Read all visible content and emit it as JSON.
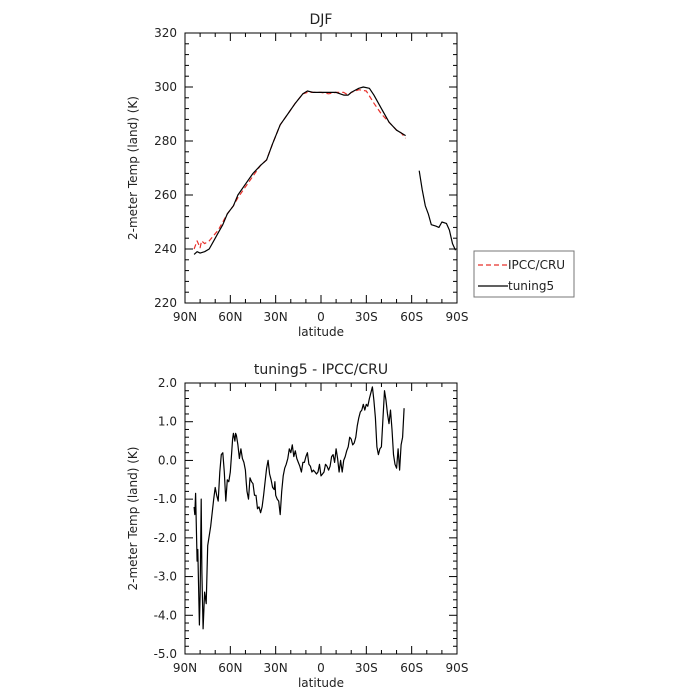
{
  "chart_data": [
    {
      "type": "line",
      "title": "DJF",
      "xlabel": "latitude",
      "ylabel": "2-meter Temp (land) (K)",
      "xlim": [
        90,
        -90
      ],
      "ylim": [
        220,
        320
      ],
      "yticks": [
        220,
        240,
        260,
        280,
        300,
        320
      ],
      "ytick_labels": [
        "220",
        "240",
        "260",
        "280",
        "300",
        "320"
      ],
      "xticks": [
        90,
        60,
        30,
        0,
        -30,
        -60,
        -90
      ],
      "xtick_labels": [
        "90N",
        "60N",
        "30N",
        "0",
        "30S",
        "60S",
        "90S"
      ],
      "legend_position": "right",
      "series": [
        {
          "name": "IPCC/CRU",
          "style": "dashed",
          "color": "#e8302a",
          "segments": [
            [
              [
                84,
                240
              ],
              [
                82,
                243
              ],
              [
                80,
                240.5
              ],
              [
                79,
                243
              ],
              [
                77,
                242
              ],
              [
                74,
                243
              ],
              [
                71,
                245
              ],
              [
                68,
                247
              ],
              [
                65,
                250
              ],
              [
                62,
                253
              ],
              [
                58,
                256
              ],
              [
                55,
                259
              ],
              [
                50,
                263
              ],
              [
                45,
                267
              ],
              [
                40,
                271
              ],
              [
                36,
                273
              ],
              [
                32,
                279
              ],
              [
                27,
                286
              ],
              [
                22,
                290
              ],
              [
                17,
                294
              ],
              [
                12,
                297.5
              ],
              [
                9,
                298
              ],
              [
                5,
                298
              ],
              [
                0,
                298
              ],
              [
                -5,
                297.5
              ],
              [
                -10,
                298
              ],
              [
                -15,
                298
              ],
              [
                -18,
                297
              ],
              [
                -20,
                298
              ],
              [
                -25,
                299
              ],
              [
                -30,
                298.5
              ],
              [
                -35,
                294
              ],
              [
                -40,
                290
              ],
              [
                -45,
                287
              ],
              [
                -50,
                284
              ],
              [
                -53,
                283
              ],
              [
                -56,
                281
              ]
            ]
          ]
        },
        {
          "name": "tuning5",
          "style": "solid",
          "color": "#000000",
          "segments": [
            [
              [
                84,
                238
              ],
              [
                82,
                239
              ],
              [
                80,
                238.5
              ],
              [
                77,
                239
              ],
              [
                74,
                240
              ],
              [
                71,
                243
              ],
              [
                68,
                246
              ],
              [
                65,
                249
              ],
              [
                62,
                253
              ],
              [
                58,
                256
              ],
              [
                55,
                260
              ],
              [
                50,
                264
              ],
              [
                45,
                268
              ],
              [
                40,
                271
              ],
              [
                36,
                273
              ],
              [
                32,
                279
              ],
              [
                27,
                286
              ],
              [
                22,
                290
              ],
              [
                17,
                294
              ],
              [
                12,
                297.5
              ],
              [
                9,
                298.5
              ],
              [
                5,
                298
              ],
              [
                0,
                298
              ],
              [
                -5,
                298
              ],
              [
                -10,
                298
              ],
              [
                -15,
                297
              ],
              [
                -18,
                297
              ],
              [
                -20,
                298
              ],
              [
                -25,
                299.5
              ],
              [
                -28,
                300
              ],
              [
                -32,
                299.5
              ],
              [
                -35,
                297
              ],
              [
                -40,
                292
              ],
              [
                -45,
                287
              ],
              [
                -50,
                284
              ],
              [
                -53,
                283
              ],
              [
                -56,
                282
              ]
            ],
            [
              [
                -65,
                269
              ],
              [
                -67,
                262
              ],
              [
                -69,
                256
              ],
              [
                -71,
                253
              ],
              [
                -73,
                249
              ],
              [
                -76,
                248.5
              ],
              [
                -78,
                248
              ],
              [
                -80,
                250
              ],
              [
                -83,
                249.5
              ],
              [
                -85,
                247
              ],
              [
                -87,
                242
              ],
              [
                -89,
                239.5
              ]
            ]
          ]
        }
      ]
    },
    {
      "type": "line",
      "title": "tuning5 - IPCC/CRU",
      "xlabel": "latitude",
      "ylabel": "2-meter Temp (land) (K)",
      "xlim": [
        90,
        -90
      ],
      "ylim": [
        -5,
        2
      ],
      "yticks": [
        -5,
        -4,
        -3,
        -2,
        -1,
        0,
        1,
        2
      ],
      "ytick_labels": [
        "-5.0",
        "-4.0",
        "-3.0",
        "-2.0",
        "-1.0",
        "0.0",
        "1.0",
        "2.0"
      ],
      "xticks": [
        90,
        60,
        30,
        0,
        -30,
        -60,
        -90
      ],
      "xtick_labels": [
        "90N",
        "60N",
        "30N",
        "0",
        "30S",
        "60S",
        "90S"
      ],
      "series": [
        {
          "name": "tuning5",
          "style": "solid",
          "color": "#000000",
          "segments": [
            [
              [
                84,
                -1.2
              ],
              [
                83.5,
                -1.4
              ],
              [
                83,
                -0.85
              ],
              [
                82,
                -2.6
              ],
              [
                81.5,
                -2.3
              ],
              [
                80.5,
                -4.25
              ],
              [
                80,
                -3.5
              ],
              [
                79.3,
                -1.0
              ],
              [
                78.8,
                -2.9
              ],
              [
                78,
                -4.35
              ],
              [
                77,
                -3.4
              ],
              [
                76,
                -3.7
              ],
              [
                75,
                -2.2
              ],
              [
                73,
                -1.7
              ],
              [
                71,
                -1.0
              ],
              [
                70,
                -0.7
              ],
              [
                69,
                -0.9
              ],
              [
                68,
                -1.05
              ],
              [
                67,
                -0.3
              ],
              [
                66,
                0.15
              ],
              [
                65,
                0.2
              ],
              [
                64,
                -0.3
              ],
              [
                63,
                -1.05
              ],
              [
                62,
                -0.5
              ],
              [
                61,
                -0.55
              ],
              [
                60,
                -0.3
              ],
              [
                59,
                0.25
              ],
              [
                58.5,
                0.55
              ],
              [
                58,
                0.7
              ],
              [
                57,
                0.5
              ],
              [
                56.5,
                0.7
              ],
              [
                56,
                0.65
              ],
              [
                55,
                0.4
              ],
              [
                54,
                0.05
              ],
              [
                53,
                0.3
              ],
              [
                52,
                0.05
              ],
              [
                51,
                -0.05
              ],
              [
                50,
                -0.25
              ],
              [
                49.5,
                -0.55
              ],
              [
                49,
                -0.8
              ],
              [
                48,
                -1.0
              ],
              [
                47,
                -0.45
              ],
              [
                46,
                -0.55
              ],
              [
                45,
                -0.6
              ],
              [
                44,
                -0.9
              ],
              [
                43,
                -0.9
              ],
              [
                42,
                -1.25
              ],
              [
                41,
                -1.2
              ],
              [
                40,
                -1.35
              ],
              [
                39,
                -1.2
              ],
              [
                38,
                -0.9
              ],
              [
                37,
                -0.55
              ],
              [
                36,
                -0.2
              ],
              [
                35,
                0.0
              ],
              [
                34,
                -0.35
              ],
              [
                33,
                -0.5
              ],
              [
                32,
                -0.7
              ],
              [
                31,
                -0.75
              ],
              [
                30.5,
                -0.55
              ],
              [
                30,
                -0.9
              ],
              [
                29,
                -1.0
              ],
              [
                28,
                -1.05
              ],
              [
                27,
                -1.4
              ],
              [
                26,
                -0.8
              ],
              [
                25,
                -0.4
              ],
              [
                24,
                -0.2
              ],
              [
                23,
                -0.1
              ],
              [
                22,
                0.05
              ],
              [
                21,
                0.3
              ],
              [
                20,
                0.2
              ],
              [
                19,
                0.4
              ],
              [
                18,
                0.1
              ],
              [
                17,
                0.25
              ],
              [
                16,
                0.05
              ],
              [
                15,
                -0.05
              ],
              [
                14,
                -0.15
              ],
              [
                13,
                -0.3
              ],
              [
                12,
                -0.05
              ],
              [
                11,
                -0.05
              ],
              [
                10,
                0.1
              ],
              [
                9,
                0.2
              ],
              [
                8,
                -0.1
              ],
              [
                7,
                -0.15
              ],
              [
                6,
                -0.3
              ],
              [
                5,
                -0.25
              ],
              [
                4,
                -0.3
              ],
              [
                3,
                -0.35
              ],
              [
                2,
                -0.3
              ],
              [
                1,
                -0.1
              ],
              [
                0,
                -0.4
              ],
              [
                -1,
                -0.35
              ],
              [
                -2,
                -0.3
              ],
              [
                -3,
                -0.1
              ],
              [
                -4,
                -0.15
              ],
              [
                -5,
                -0.25
              ],
              [
                -6,
                -0.15
              ],
              [
                -7,
                0.1
              ],
              [
                -8,
                0.15
              ],
              [
                -9,
                -0.05
              ],
              [
                -10,
                0.3
              ],
              [
                -11,
                0.05
              ],
              [
                -12,
                -0.3
              ],
              [
                -13,
                0.0
              ],
              [
                -14,
                -0.3
              ],
              [
                -15,
                0.0
              ],
              [
                -16,
                0.1
              ],
              [
                -17,
                0.25
              ],
              [
                -18,
                0.35
              ],
              [
                -19,
                0.6
              ],
              [
                -20,
                0.55
              ],
              [
                -21,
                0.4
              ],
              [
                -22,
                0.45
              ],
              [
                -23,
                0.6
              ],
              [
                -24,
                0.9
              ],
              [
                -25,
                1.1
              ],
              [
                -26,
                1.25
              ],
              [
                -27,
                1.3
              ],
              [
                -28,
                1.45
              ],
              [
                -29,
                1.3
              ],
              [
                -30,
                1.45
              ],
              [
                -31,
                1.4
              ],
              [
                -32,
                1.6
              ],
              [
                -33,
                1.75
              ],
              [
                -34,
                1.9
              ],
              [
                -35,
                1.55
              ],
              [
                -36,
                1.1
              ],
              [
                -37,
                0.35
              ],
              [
                -38,
                0.15
              ],
              [
                -39,
                0.3
              ],
              [
                -40,
                0.35
              ],
              [
                -41,
                1.1
              ],
              [
                -42,
                1.8
              ],
              [
                -43,
                1.55
              ],
              [
                -44,
                1.2
              ],
              [
                -45,
                0.95
              ],
              [
                -46,
                1.3
              ],
              [
                -47,
                0.8
              ],
              [
                -48,
                0.15
              ],
              [
                -49,
                -0.1
              ],
              [
                -50,
                -0.2
              ],
              [
                -51,
                0.3
              ],
              [
                -52,
                -0.25
              ],
              [
                -53,
                0.4
              ],
              [
                -54,
                0.6
              ],
              [
                -55,
                1.35
              ]
            ]
          ]
        }
      ]
    }
  ]
}
